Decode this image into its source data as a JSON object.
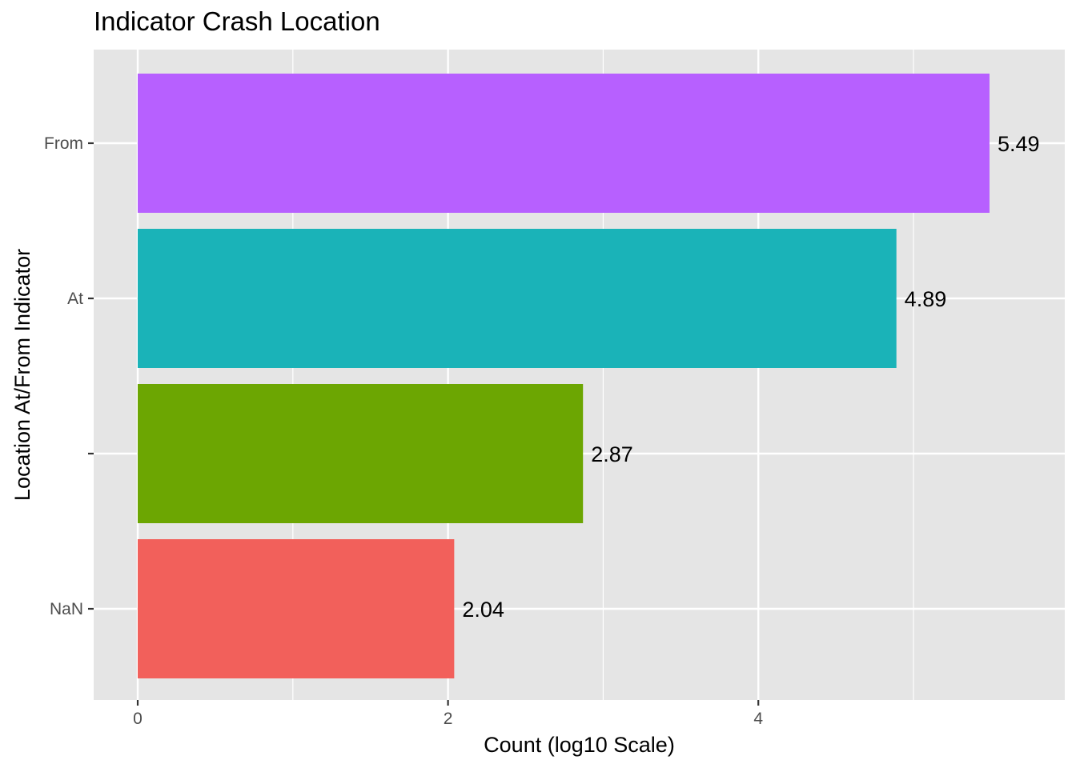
{
  "chart_data": {
    "type": "bar",
    "orientation": "horizontal",
    "title": "Indicator Crash Location",
    "xlabel": "Count (log10 Scale)",
    "ylabel": "Location At/From Indicator",
    "categories": [
      "From",
      "At",
      "",
      "NaN"
    ],
    "values": [
      5.49,
      4.89,
      2.87,
      2.04
    ],
    "data_labels": [
      "5.49",
      "4.89",
      "2.87",
      "2.04"
    ],
    "colors": [
      "#B760FF",
      "#1AB3B8",
      "#6CA602",
      "#F2605B"
    ],
    "xlim": [
      -0.28,
      5.76
    ],
    "x_ticks": [
      0,
      2,
      4
    ],
    "x_minor_ticks": [
      1,
      3,
      5
    ],
    "grid": true,
    "legend": "none",
    "panel_background": "#E5E5E5",
    "grid_color": "#FFFFFF"
  }
}
